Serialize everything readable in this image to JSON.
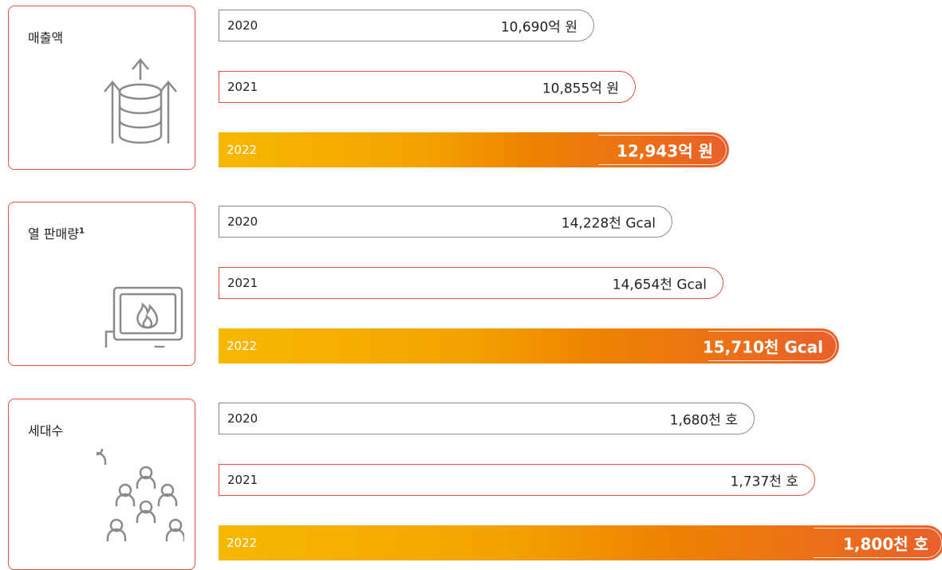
{
  "panels": [
    {
      "title": "매출액",
      "rows": [
        {
          "year": "2020",
          "value": "10,690억 원"
        },
        {
          "year": "2021",
          "value": "10,855억 원"
        },
        {
          "year": "2022",
          "value": "12,943억 원"
        }
      ]
    },
    {
      "title": "열 판매량",
      "title_note": "1",
      "rows": [
        {
          "year": "2020",
          "value": "14,228천 Gcal"
        },
        {
          "year": "2021",
          "value": "14,654천 Gcal"
        },
        {
          "year": "2022",
          "value": "15,710천 Gcal"
        }
      ]
    },
    {
      "title": "세대수",
      "rows": [
        {
          "year": "2020",
          "value": "1,680천 호"
        },
        {
          "year": "2021",
          "value": "1,737천 호"
        },
        {
          "year": "2022",
          "value": "1,800천 호"
        }
      ]
    }
  ]
}
